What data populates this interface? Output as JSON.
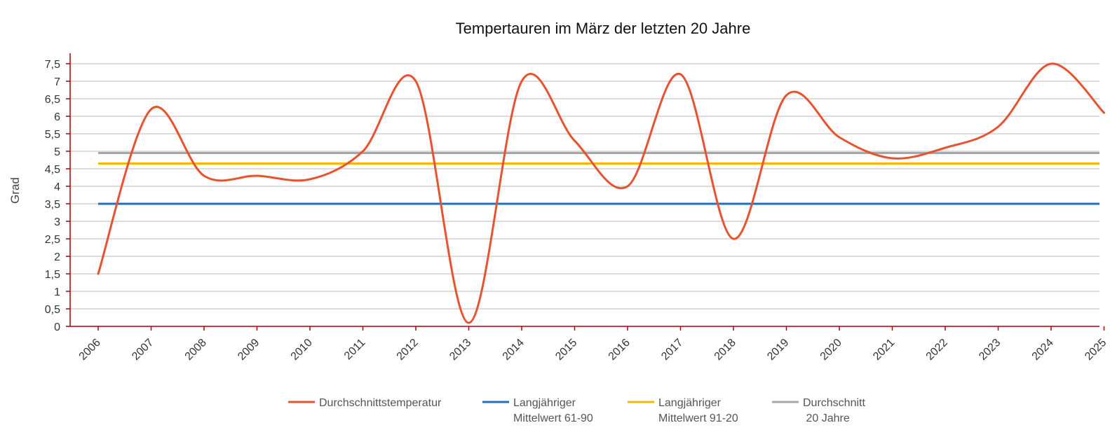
{
  "chart_data": {
    "type": "line",
    "title": "Tempertauren im März der letzten 20 Jahre",
    "xlabel": "",
    "ylabel": "Grad",
    "x": [
      "2006",
      "2007",
      "2008",
      "2009",
      "2010",
      "2011",
      "2012",
      "2013",
      "2014",
      "2015",
      "2016",
      "2017",
      "2018",
      "2019",
      "2020",
      "2021",
      "2022",
      "2023",
      "2024",
      "2025"
    ],
    "y_ticks": [
      "0",
      "0,5",
      "1",
      "1,5",
      "2",
      "2,5",
      "3",
      "3,5",
      "4",
      "4,5",
      "5",
      "5,5",
      "6",
      "6,5",
      "7",
      "7,5"
    ],
    "ylim": [
      0,
      7.8
    ],
    "grid": true,
    "legend_position": "bottom",
    "series": [
      {
        "name": "Durchschnittstemperatur",
        "color": "#e8532f",
        "smooth": true,
        "values": [
          1.5,
          6.2,
          4.3,
          4.3,
          4.2,
          5.0,
          7.0,
          0.1,
          7.0,
          5.3,
          4.0,
          7.2,
          2.5,
          6.6,
          5.4,
          4.8,
          5.1,
          5.7,
          7.5,
          6.1
        ]
      },
      {
        "name": "Langjähriger Mittelwert 61-90",
        "name_lines": [
          "Langjähriger",
          "Mittelwert 61-90"
        ],
        "color": "#1f6fc1",
        "constant": 3.5
      },
      {
        "name": "Langjähriger Mittelwert 91-20",
        "name_lines": [
          "Langjähriger",
          "Mittelwert 91-20"
        ],
        "color": "#f5b800",
        "constant": 4.65
      },
      {
        "name": "Durchschnitt 20 Jahre",
        "name_lines": [
          "Durchschnitt",
          " 20 Jahre"
        ],
        "color": "#a6a6a6",
        "constant": 4.95
      }
    ]
  }
}
